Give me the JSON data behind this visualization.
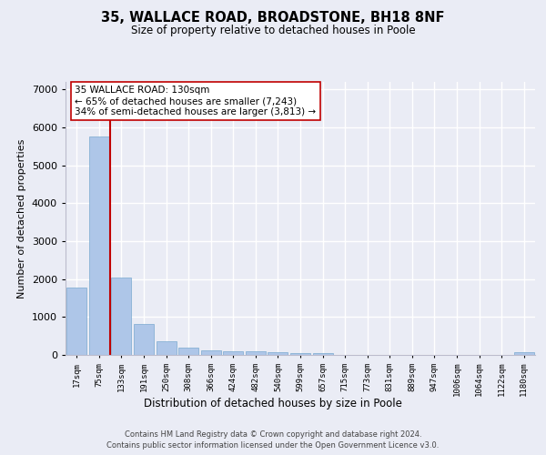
{
  "title1": "35, WALLACE ROAD, BROADSTONE, BH18 8NF",
  "title2": "Size of property relative to detached houses in Poole",
  "xlabel": "Distribution of detached houses by size in Poole",
  "ylabel": "Number of detached properties",
  "categories": [
    "17sqm",
    "75sqm",
    "133sqm",
    "191sqm",
    "250sqm",
    "308sqm",
    "366sqm",
    "424sqm",
    "482sqm",
    "540sqm",
    "599sqm",
    "657sqm",
    "715sqm",
    "773sqm",
    "831sqm",
    "889sqm",
    "947sqm",
    "1006sqm",
    "1064sqm",
    "1122sqm",
    "1180sqm"
  ],
  "values": [
    1780,
    5750,
    2050,
    820,
    360,
    200,
    120,
    100,
    100,
    70,
    60,
    50,
    0,
    0,
    0,
    0,
    0,
    0,
    0,
    0,
    70
  ],
  "bar_color": "#aec6e8",
  "bar_edge_color": "#7aaacf",
  "highlight_color": "#c00000",
  "highlight_index": 2,
  "annotation_text": "35 WALLACE ROAD: 130sqm\n← 65% of detached houses are smaller (7,243)\n34% of semi-detached houses are larger (3,813) →",
  "annotation_box_color": "#ffffff",
  "annotation_box_edge": "#c00000",
  "ylim": [
    0,
    7200
  ],
  "yticks": [
    0,
    1000,
    2000,
    3000,
    4000,
    5000,
    6000,
    7000
  ],
  "footer1": "Contains HM Land Registry data © Crown copyright and database right 2024.",
  "footer2": "Contains public sector information licensed under the Open Government Licence v3.0.",
  "bg_color": "#eaecf5",
  "plot_bg_color": "#eaecf5",
  "grid_color": "#ffffff",
  "figsize": [
    6.0,
    5.0
  ],
  "dpi": 100
}
